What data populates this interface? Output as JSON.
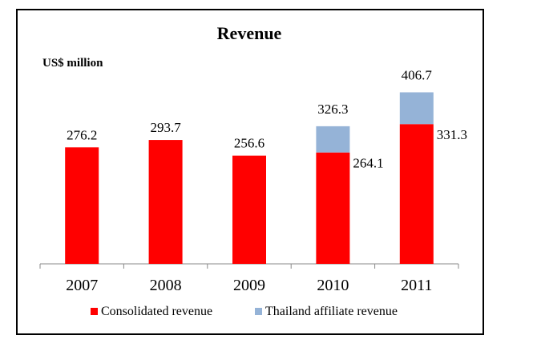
{
  "chart_data": {
    "type": "bar",
    "stacked": true,
    "title": "Revenue",
    "ylabel": "US$ million",
    "xlabel": "",
    "categories": [
      "2007",
      "2008",
      "2009",
      "2010",
      "2011"
    ],
    "series": [
      {
        "name": "Consolidated revenue",
        "color": "#ff0000",
        "values": [
          276.2,
          293.7,
          256.6,
          264.1,
          331.3
        ]
      },
      {
        "name": "Thailand affiliate revenue",
        "color": "#95b3d7",
        "values": [
          0,
          0,
          0,
          62.2,
          75.4
        ]
      }
    ],
    "data_labels": {
      "consolidated": [
        "276.2",
        "293.7",
        "256.6",
        "264.1",
        "331.3"
      ],
      "total": [
        "",
        "",
        "",
        "326.3",
        "406.7"
      ]
    },
    "ylim": [
      0,
      550
    ],
    "grid": false,
    "legend": "bottom"
  }
}
